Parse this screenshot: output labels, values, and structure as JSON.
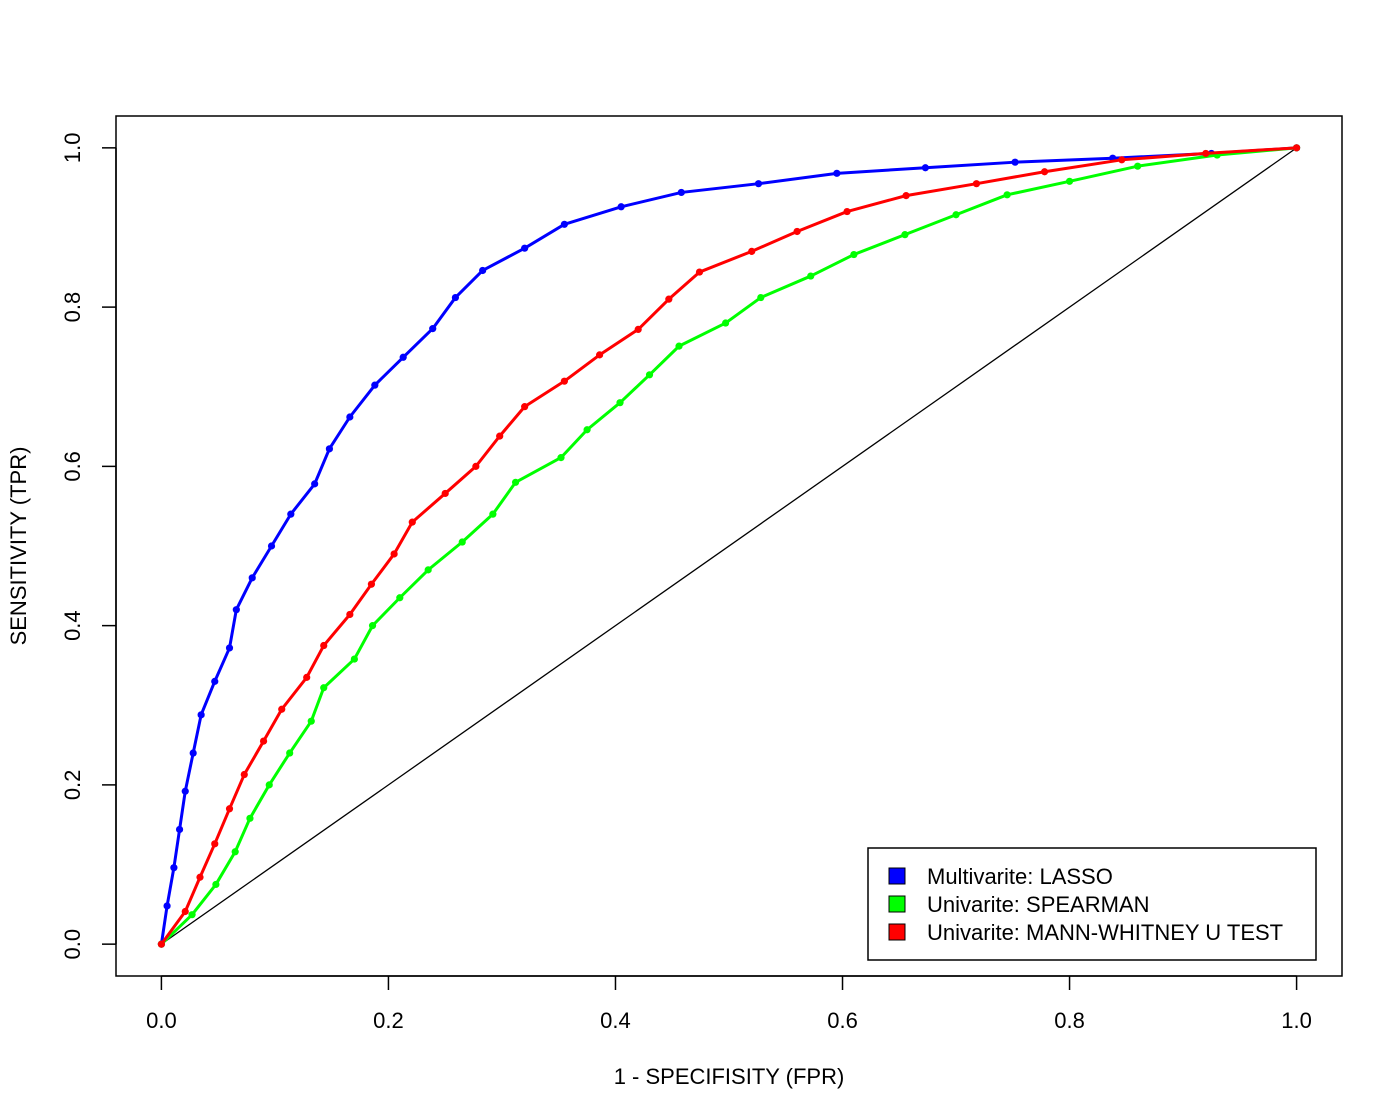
{
  "chart_data": {
    "type": "line",
    "title": "",
    "xlabel": "1 - SPECIFISITY (FPR)",
    "ylabel": "SENSITIVITY (TPR)",
    "xlim": [
      -0.04,
      1.04
    ],
    "ylim": [
      -0.04,
      1.04
    ],
    "xticks": [
      "0.0",
      "0.2",
      "0.4",
      "0.6",
      "0.8",
      "1.0"
    ],
    "yticks": [
      "0.0",
      "0.2",
      "0.4",
      "0.6",
      "0.8",
      "1.0"
    ],
    "grid": false,
    "legend_position": "bottom-right",
    "diagonal": {
      "color": "#000000",
      "points": [
        [
          0,
          0
        ],
        [
          1,
          1
        ]
      ]
    },
    "series": [
      {
        "name": "Multivarite: LASSO",
        "color": "#0000ff",
        "points": [
          [
            0.0,
            0.0
          ],
          [
            0.005,
            0.048
          ],
          [
            0.011,
            0.096
          ],
          [
            0.016,
            0.144
          ],
          [
            0.021,
            0.192
          ],
          [
            0.028,
            0.24
          ],
          [
            0.035,
            0.288
          ],
          [
            0.047,
            0.33
          ],
          [
            0.06,
            0.372
          ],
          [
            0.066,
            0.42
          ],
          [
            0.08,
            0.46
          ],
          [
            0.097,
            0.5
          ],
          [
            0.114,
            0.54
          ],
          [
            0.135,
            0.578
          ],
          [
            0.148,
            0.622
          ],
          [
            0.166,
            0.662
          ],
          [
            0.188,
            0.702
          ],
          [
            0.213,
            0.737
          ],
          [
            0.239,
            0.773
          ],
          [
            0.259,
            0.812
          ],
          [
            0.283,
            0.846
          ],
          [
            0.32,
            0.874
          ],
          [
            0.355,
            0.904
          ],
          [
            0.405,
            0.926
          ],
          [
            0.458,
            0.944
          ],
          [
            0.526,
            0.955
          ],
          [
            0.595,
            0.968
          ],
          [
            0.673,
            0.975
          ],
          [
            0.752,
            0.982
          ],
          [
            0.838,
            0.987
          ],
          [
            0.925,
            0.993
          ],
          [
            1.0,
            1.0
          ]
        ]
      },
      {
        "name": "Univarite: SPEARMAN",
        "color": "#00ff00",
        "points": [
          [
            0.0,
            0.0
          ],
          [
            0.027,
            0.037
          ],
          [
            0.048,
            0.075
          ],
          [
            0.065,
            0.116
          ],
          [
            0.078,
            0.158
          ],
          [
            0.095,
            0.2
          ],
          [
            0.113,
            0.24
          ],
          [
            0.132,
            0.28
          ],
          [
            0.143,
            0.322
          ],
          [
            0.17,
            0.358
          ],
          [
            0.186,
            0.4
          ],
          [
            0.21,
            0.435
          ],
          [
            0.235,
            0.47
          ],
          [
            0.265,
            0.505
          ],
          [
            0.292,
            0.54
          ],
          [
            0.312,
            0.58
          ],
          [
            0.352,
            0.611
          ],
          [
            0.375,
            0.646
          ],
          [
            0.404,
            0.68
          ],
          [
            0.43,
            0.715
          ],
          [
            0.456,
            0.751
          ],
          [
            0.497,
            0.78
          ],
          [
            0.528,
            0.812
          ],
          [
            0.572,
            0.839
          ],
          [
            0.61,
            0.866
          ],
          [
            0.655,
            0.891
          ],
          [
            0.7,
            0.916
          ],
          [
            0.745,
            0.941
          ],
          [
            0.8,
            0.958
          ],
          [
            0.86,
            0.977
          ],
          [
            0.93,
            0.991
          ],
          [
            1.0,
            1.0
          ]
        ]
      },
      {
        "name": "Univarite: MANN-WHITNEY U TEST",
        "color": "#ff0000",
        "points": [
          [
            0.0,
            0.0
          ],
          [
            0.021,
            0.041
          ],
          [
            0.034,
            0.084
          ],
          [
            0.047,
            0.126
          ],
          [
            0.06,
            0.17
          ],
          [
            0.073,
            0.213
          ],
          [
            0.09,
            0.255
          ],
          [
            0.106,
            0.295
          ],
          [
            0.128,
            0.335
          ],
          [
            0.143,
            0.375
          ],
          [
            0.166,
            0.414
          ],
          [
            0.185,
            0.452
          ],
          [
            0.205,
            0.49
          ],
          [
            0.221,
            0.53
          ],
          [
            0.25,
            0.566
          ],
          [
            0.277,
            0.6
          ],
          [
            0.298,
            0.638
          ],
          [
            0.32,
            0.675
          ],
          [
            0.355,
            0.707
          ],
          [
            0.386,
            0.74
          ],
          [
            0.42,
            0.772
          ],
          [
            0.447,
            0.81
          ],
          [
            0.474,
            0.844
          ],
          [
            0.52,
            0.87
          ],
          [
            0.56,
            0.895
          ],
          [
            0.604,
            0.92
          ],
          [
            0.656,
            0.94
          ],
          [
            0.718,
            0.955
          ],
          [
            0.778,
            0.97
          ],
          [
            0.846,
            0.985
          ],
          [
            0.92,
            0.993
          ],
          [
            1.0,
            1.0
          ]
        ]
      }
    ]
  }
}
